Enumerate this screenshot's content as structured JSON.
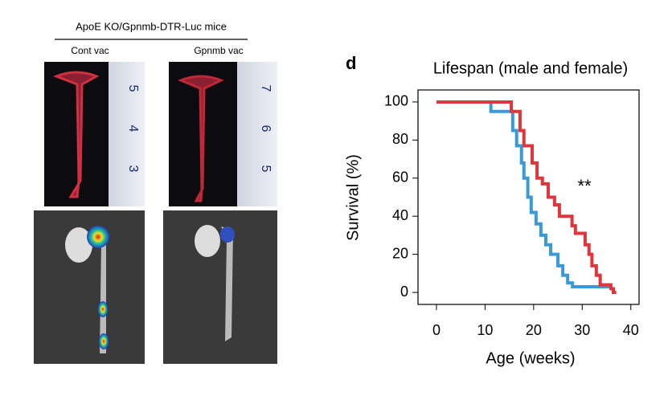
{
  "panel_left": {
    "header": "ApoE KO/Gpnmb-DTR-Luc mice",
    "groups": [
      "Cont vac",
      "Gpnmb vac"
    ],
    "ruler_labels": [
      [
        "5",
        "4",
        "3"
      ],
      [
        "7",
        "6",
        "5"
      ]
    ]
  },
  "panel_letter": "d",
  "chart_data": {
    "type": "line",
    "step": true,
    "title": "Lifespan (male and female)",
    "x_label": "Age (weeks)",
    "y_label": "Survival (%)",
    "annotation": "**",
    "xlim": [
      -3.8,
      41.7
    ],
    "ylim": [
      -6.3,
      106.3
    ],
    "xticks": [
      0,
      10,
      20,
      30,
      40
    ],
    "yticks": [
      0,
      20,
      40,
      60,
      80,
      100
    ],
    "series": [
      {
        "color": "#3a9ad9",
        "x": [
          0,
          11.2,
          15.7,
          16.5,
          17.5,
          18,
          18.8,
          19.5,
          20.5,
          21.5,
          22.5,
          23.5,
          25,
          26,
          27,
          28,
          36
        ],
        "values": [
          100,
          95,
          85,
          77,
          68,
          60,
          50,
          42,
          36,
          30,
          25,
          20,
          14,
          9,
          5,
          3,
          3
        ]
      },
      {
        "color": "#e0353b",
        "x": [
          0,
          15.4,
          17.2,
          18,
          19.7,
          20.7,
          21.8,
          23,
          24.3,
          25.3,
          27.9,
          28.6,
          30.6,
          31.4,
          32,
          32.9,
          33.7,
          34.5,
          35.9,
          36.4,
          37
        ],
        "values": [
          100,
          95,
          85,
          77,
          68,
          60,
          57,
          50,
          46,
          40,
          35,
          31,
          25,
          20,
          14,
          9,
          4,
          4,
          2,
          0,
          0
        ]
      }
    ]
  }
}
